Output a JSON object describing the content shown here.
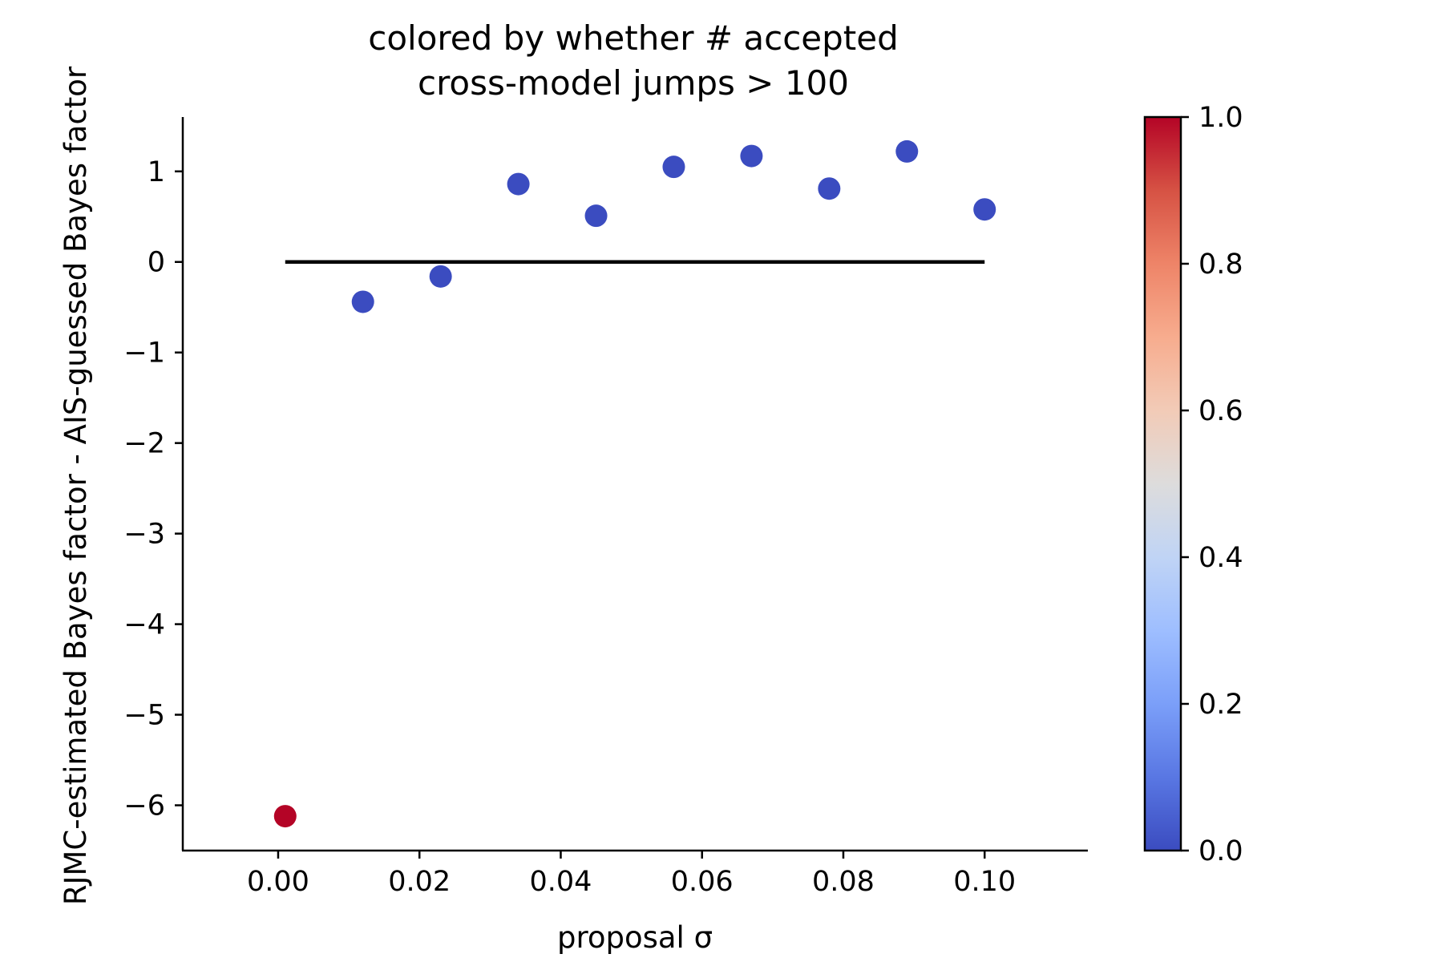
{
  "chart_data": {
    "type": "scatter",
    "title_lines": [
      "colored by whether # accepted",
      "cross-model jumps > 100"
    ],
    "xlabel": "proposal σ",
    "ylabel": "RJMC-estimated Bayes factor - AIS-guessed Bayes factor",
    "xlim": [
      -0.0135,
      0.1145
    ],
    "ylim": [
      -6.5,
      1.6
    ],
    "x_ticks": [
      0.0,
      0.02,
      0.04,
      0.06,
      0.08,
      0.1
    ],
    "x_tick_labels": [
      "0.00",
      "0.02",
      "0.04",
      "0.06",
      "0.08",
      "0.10"
    ],
    "y_ticks": [
      1,
      0,
      -1,
      -2,
      -3,
      -4,
      -5,
      -6
    ],
    "y_tick_labels": [
      "1",
      "0",
      "−1",
      "−2",
      "−3",
      "−4",
      "−5",
      "−6"
    ],
    "points": [
      {
        "x": 0.001,
        "y": -6.12,
        "c": 1
      },
      {
        "x": 0.012,
        "y": -0.44,
        "c": 0
      },
      {
        "x": 0.023,
        "y": -0.16,
        "c": 0
      },
      {
        "x": 0.034,
        "y": 0.86,
        "c": 0
      },
      {
        "x": 0.045,
        "y": 0.51,
        "c": 0
      },
      {
        "x": 0.056,
        "y": 1.05,
        "c": 0
      },
      {
        "x": 0.067,
        "y": 1.17,
        "c": 0
      },
      {
        "x": 0.078,
        "y": 0.81,
        "c": 0
      },
      {
        "x": 0.089,
        "y": 1.22,
        "c": 0
      },
      {
        "x": 0.1,
        "y": 0.58,
        "c": 0
      }
    ],
    "reference_line": {
      "x_start": 0.001,
      "x_end": 0.1,
      "y": 0
    },
    "colorbar": {
      "cmap": "coolwarm",
      "range": [
        0.0,
        1.0
      ],
      "ticks": [
        0.0,
        0.2,
        0.4,
        0.6,
        0.8,
        1.0
      ],
      "tick_labels": [
        "0.0",
        "0.2",
        "0.4",
        "0.6",
        "0.8",
        "1.0"
      ]
    },
    "colors": {
      "low": "#3b4cc0",
      "mid": "#dddddd",
      "high": "#b40426",
      "axis": "#000000",
      "reference_line": "#000000"
    },
    "grid": false,
    "legend": "none"
  }
}
